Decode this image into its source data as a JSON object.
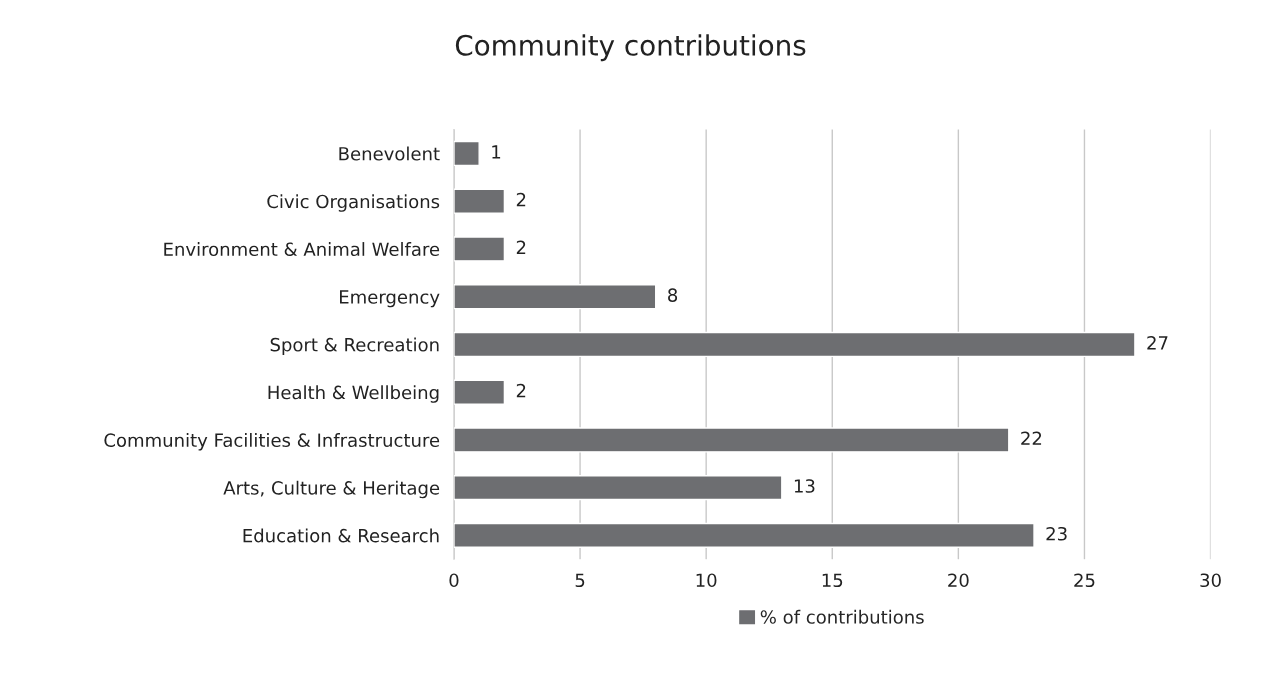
{
  "chart_data": {
    "type": "bar",
    "orientation": "horizontal",
    "title": "Community contributions",
    "categories": [
      "Benevolent",
      "Civic Organisations",
      "Environment & Animal Welfare",
      "Emergency",
      "Sport & Recreation",
      "Health & Wellbeing",
      "Community Facilities & Infrastructure",
      "Arts, Culture & Heritage",
      "Education & Research"
    ],
    "series": [
      {
        "name": "% of contributions",
        "color": "#6d6e71",
        "values": [
          1,
          2,
          2,
          8,
          27,
          2,
          22,
          13,
          23
        ]
      }
    ],
    "xlim": [
      0,
      30
    ],
    "xticks": [
      0,
      5,
      10,
      15,
      20,
      25,
      30
    ],
    "grid": "x",
    "legend": "bottom",
    "data_labels": true
  }
}
